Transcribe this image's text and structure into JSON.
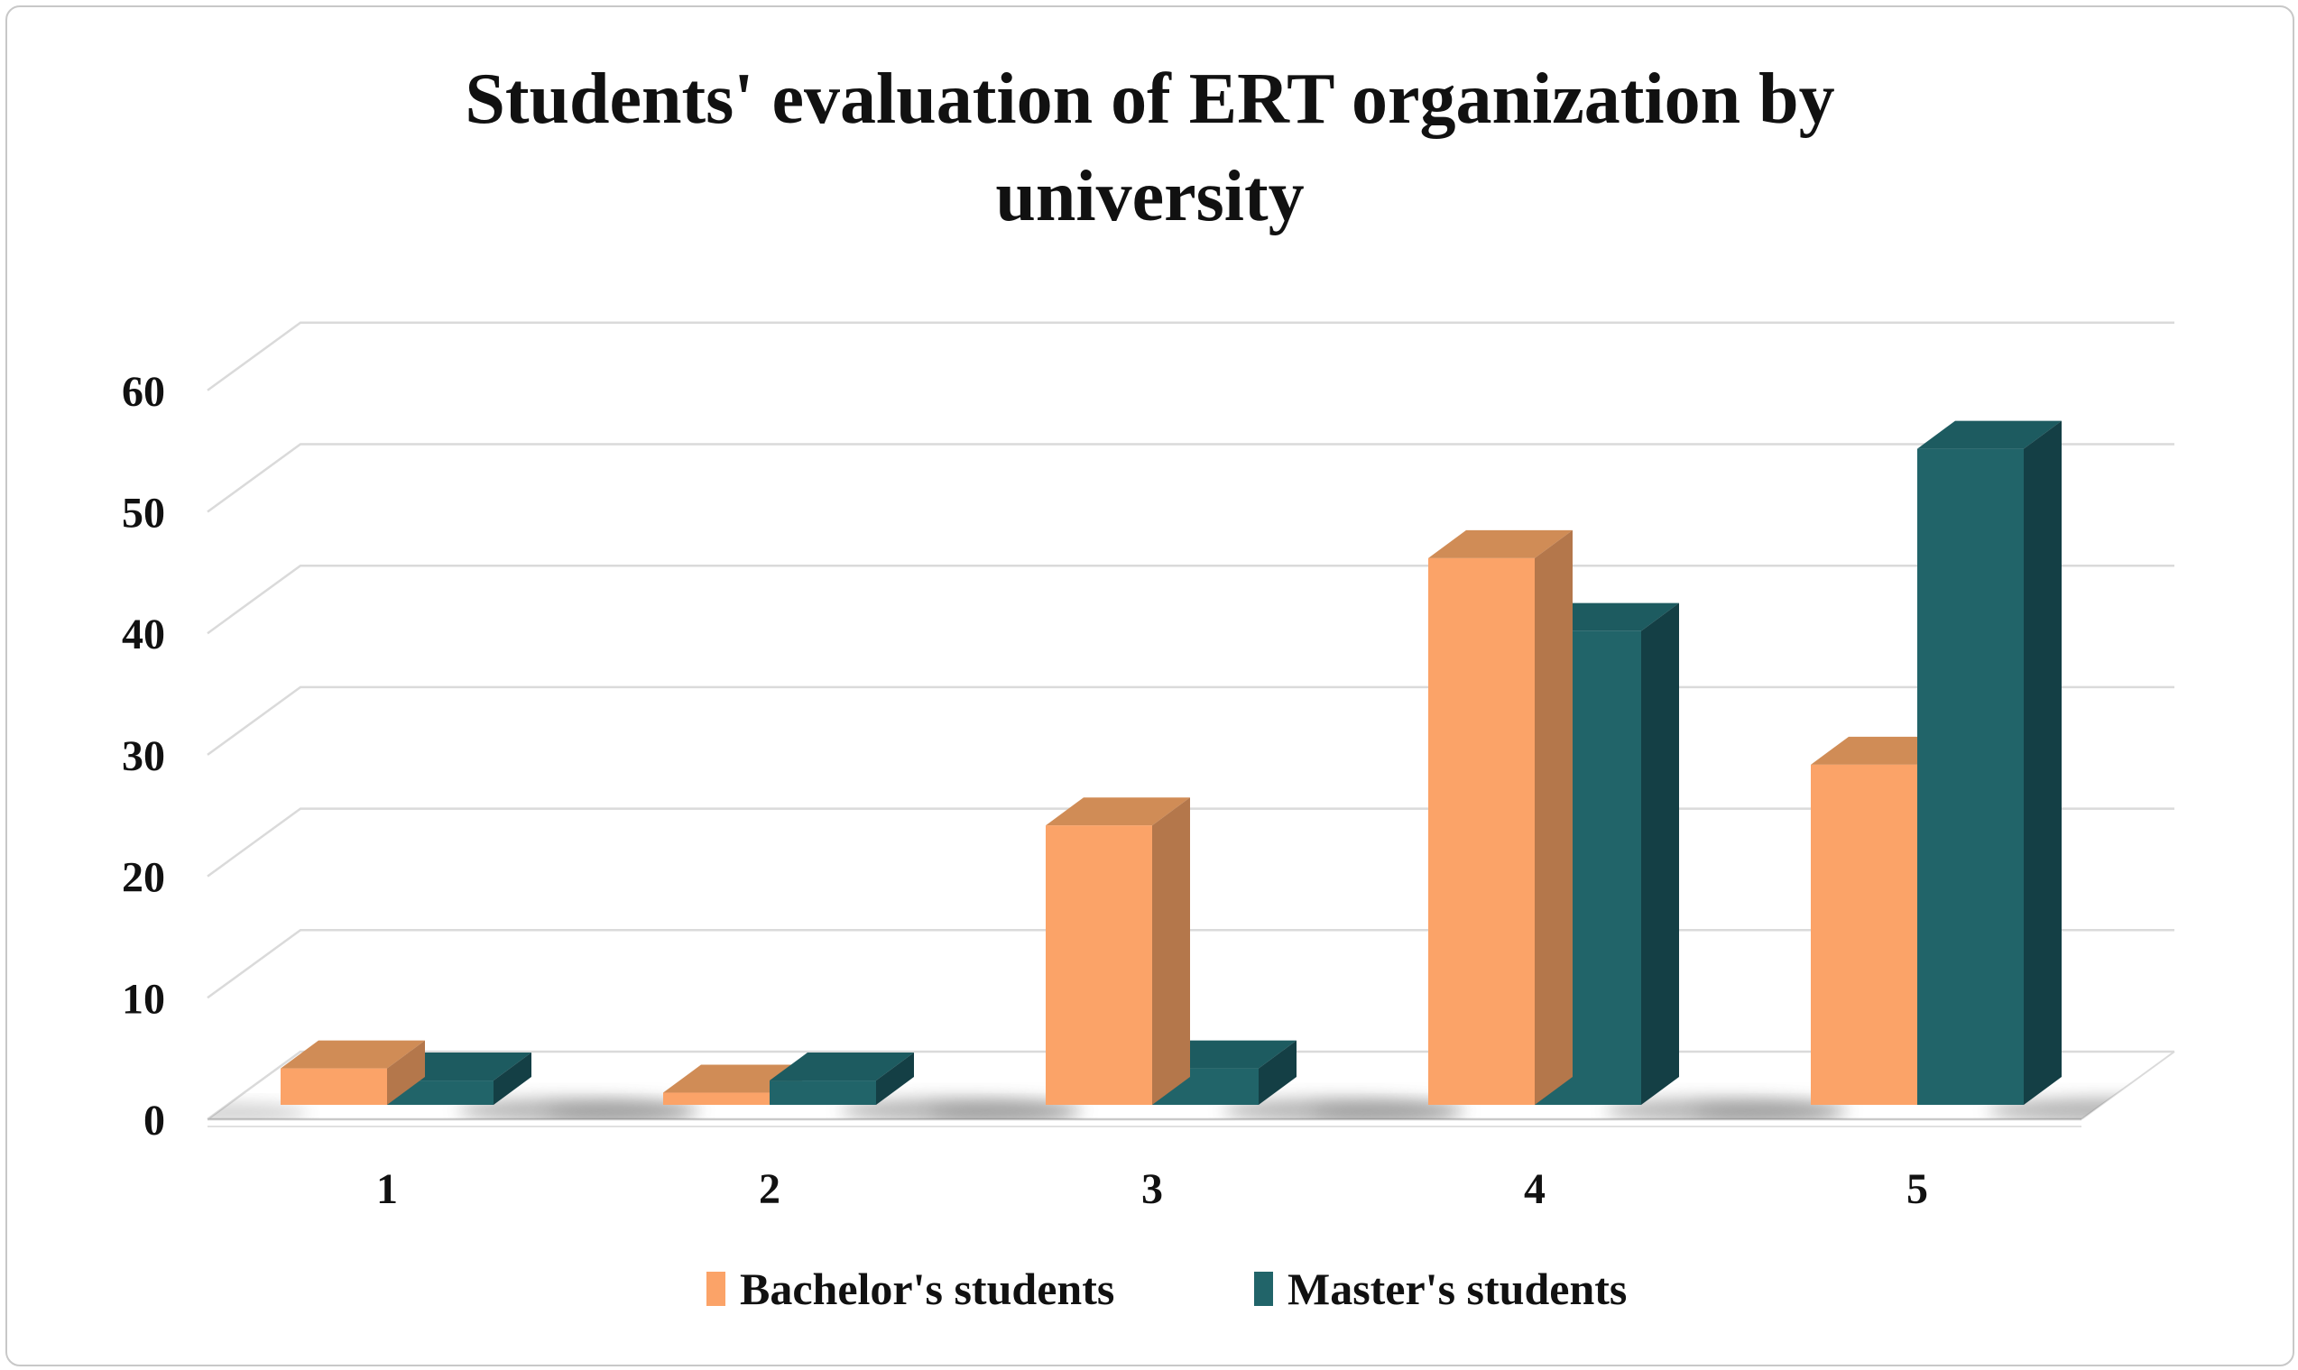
{
  "window": {
    "background": "#ffffff",
    "border_color": "#c8c8c8"
  },
  "chart_data": {
    "type": "bar",
    "projection": "3d-clustered-column",
    "title": "Students' evaluation of ERT organization by university",
    "title_lines": [
      "Students' evaluation of ERT organization by",
      "university"
    ],
    "categories": [
      "1",
      "2",
      "3",
      "4",
      "5"
    ],
    "series": [
      {
        "name": "Bachelor's students",
        "color": "#FBA368",
        "color_top": "#D08C56",
        "color_side": "#B4774B",
        "values": [
          3,
          1,
          23,
          45,
          28
        ]
      },
      {
        "name": "Master's students",
        "color": "#216469",
        "color_top": "#1D5B60",
        "color_side": "#143F45",
        "values": [
          2,
          2,
          3,
          39,
          54
        ]
      }
    ],
    "xlabel": "",
    "ylabel": "",
    "ylim": [
      0,
      60
    ],
    "ytick_step": 10,
    "yticks": [
      "0",
      "10",
      "20",
      "30",
      "40",
      "50",
      "60"
    ],
    "grid": true,
    "gridline_color": "#DADADA",
    "axis_line_color": "#C9C9C9",
    "text_color": "#111111",
    "legend_position": "bottom"
  }
}
